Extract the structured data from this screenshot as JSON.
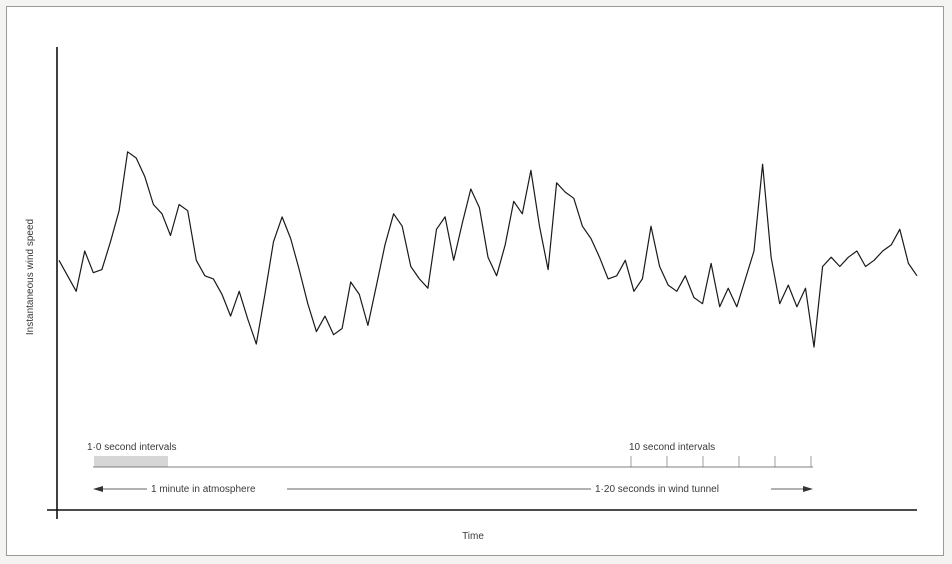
{
  "chart_data": {
    "type": "line",
    "title": "",
    "xlabel": "Time",
    "ylabel": "Instantaneous wind speed",
    "grid": false,
    "legend": "none",
    "x": [
      0,
      0.01,
      0.02,
      0.03,
      0.04,
      0.05,
      0.06,
      0.07,
      0.08,
      0.09,
      0.1,
      0.11,
      0.12,
      0.13,
      0.14,
      0.15,
      0.16,
      0.17,
      0.18,
      0.19,
      0.2,
      0.21,
      0.22,
      0.23,
      0.24,
      0.25,
      0.26,
      0.27,
      0.28,
      0.29,
      0.3,
      0.31,
      0.32,
      0.33,
      0.34,
      0.35,
      0.36,
      0.37,
      0.38,
      0.39,
      0.4,
      0.41,
      0.42,
      0.43,
      0.44,
      0.45,
      0.46,
      0.47,
      0.48,
      0.49,
      0.5,
      0.51,
      0.52,
      0.53,
      0.54,
      0.55,
      0.56,
      0.57,
      0.58,
      0.59,
      0.6,
      0.61,
      0.62,
      0.63,
      0.64,
      0.65,
      0.66,
      0.67,
      0.68,
      0.69,
      0.7,
      0.71,
      0.72,
      0.73,
      0.74,
      0.75,
      0.76,
      0.77,
      0.78,
      0.79,
      0.8,
      0.81,
      0.82,
      0.83,
      0.84,
      0.85,
      0.86,
      0.87,
      0.88,
      0.89,
      0.9,
      0.91,
      0.92,
      0.93,
      0.94,
      0.95,
      0.96,
      0.97,
      0.98,
      0.99,
      1.0
    ],
    "series": [
      {
        "values": [
          0.57,
          0.52,
          0.47,
          0.6,
          0.53,
          0.54,
          0.63,
          0.73,
          0.92,
          0.9,
          0.84,
          0.75,
          0.72,
          0.65,
          0.75,
          0.73,
          0.57,
          0.52,
          0.51,
          0.46,
          0.39,
          0.47,
          0.38,
          0.3,
          0.46,
          0.63,
          0.71,
          0.64,
          0.54,
          0.43,
          0.34,
          0.39,
          0.33,
          0.35,
          0.5,
          0.46,
          0.36,
          0.49,
          0.62,
          0.72,
          0.68,
          0.55,
          0.51,
          0.48,
          0.67,
          0.71,
          0.57,
          0.69,
          0.8,
          0.74,
          0.58,
          0.52,
          0.62,
          0.76,
          0.72,
          0.86,
          0.68,
          0.54,
          0.82,
          0.79,
          0.77,
          0.68,
          0.64,
          0.58,
          0.51,
          0.52,
          0.57,
          0.47,
          0.51,
          0.68,
          0.55,
          0.49,
          0.47,
          0.52,
          0.45,
          0.43,
          0.56,
          0.42,
          0.48,
          0.42,
          0.51,
          0.6,
          0.88,
          0.58,
          0.43,
          0.49,
          0.42,
          0.48,
          0.29,
          0.55,
          0.58,
          0.55,
          0.58,
          0.6,
          0.55,
          0.57,
          0.6,
          0.62,
          0.67,
          0.56,
          0.52
        ]
      }
    ],
    "xlim": [
      0,
      1
    ],
    "ylim": [
      0,
      1
    ],
    "annotations": {
      "left_scale_label": "1·0 second intervals",
      "right_scale_label": "10 second intervals",
      "left_span_label": "1 minute in atmosphere",
      "right_span_label": "1·20 seconds in wind tunnel"
    }
  }
}
